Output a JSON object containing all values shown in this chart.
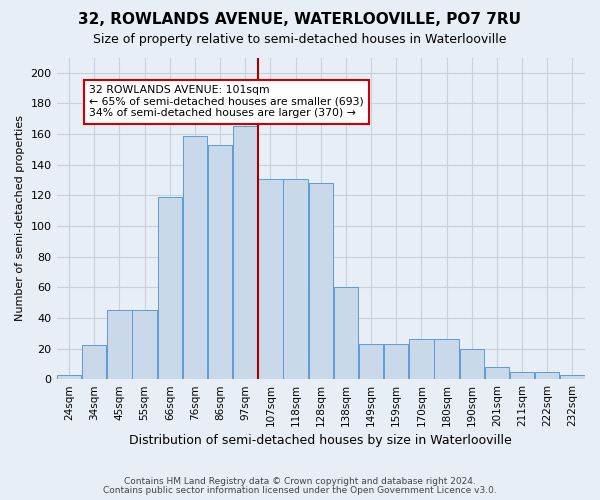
{
  "title": "32, ROWLANDS AVENUE, WATERLOOVILLE, PO7 7RU",
  "subtitle": "Size of property relative to semi-detached houses in Waterlooville",
  "xlabel": "Distribution of semi-detached houses by size in Waterlooville",
  "ylabel": "Number of semi-detached properties",
  "footnote1": "Contains HM Land Registry data © Crown copyright and database right 2024.",
  "footnote2": "Contains public sector information licensed under the Open Government Licence v3.0.",
  "categories": [
    "24sqm",
    "34sqm",
    "45sqm",
    "55sqm",
    "66sqm",
    "76sqm",
    "86sqm",
    "97sqm",
    "107sqm",
    "118sqm",
    "128sqm",
    "138sqm",
    "149sqm",
    "159sqm",
    "170sqm",
    "180sqm",
    "190sqm",
    "201sqm",
    "211sqm",
    "222sqm",
    "232sqm"
  ],
  "bar_values": [
    3,
    22,
    45,
    45,
    119,
    159,
    153,
    165,
    131,
    131,
    128,
    60,
    23,
    23,
    26,
    26,
    20,
    8,
    5,
    5,
    3
  ],
  "bar_color": "#c9d9ea",
  "bar_edge_color": "#5b9bd5",
  "annotation_text1": "32 ROWLANDS AVENUE: 101sqm",
  "annotation_text2": "← 65% of semi-detached houses are smaller (693)",
  "annotation_text3": "34% of semi-detached houses are larger (370) →",
  "annotation_box_color": "#ffffff",
  "annotation_box_edge": "#cc0000",
  "vline_color": "#aa0000",
  "ylim": [
    0,
    210
  ],
  "yticks": [
    0,
    20,
    40,
    60,
    80,
    100,
    120,
    140,
    160,
    180,
    200
  ],
  "grid_color": "#c8d0dc",
  "bg_color": "#e8eef5",
  "title_fontsize": 11,
  "subtitle_fontsize": 9,
  "ylabel_fontsize": 8,
  "xlabel_fontsize": 9
}
